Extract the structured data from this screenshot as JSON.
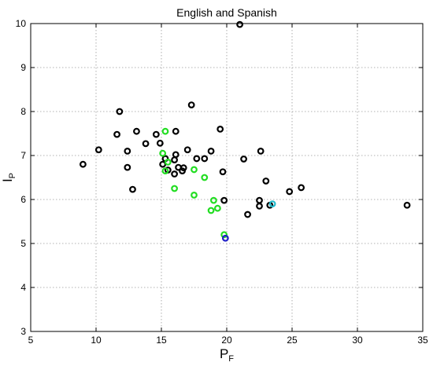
{
  "chart_data": {
    "type": "scatter",
    "title": "English and Spanish",
    "xlabel": {
      "main": "P",
      "sub": "F"
    },
    "ylabel": {
      "main": "I",
      "sub": "P"
    },
    "xlim": [
      5,
      35
    ],
    "ylim": [
      3,
      10
    ],
    "xticks": [
      5,
      10,
      15,
      20,
      25,
      30,
      35
    ],
    "yticks": [
      3,
      4,
      5,
      6,
      7,
      8,
      9,
      10
    ],
    "grid": true,
    "legend": "none",
    "series": [
      {
        "color": "#000000",
        "points": [
          [
            21.0,
            9.98
          ],
          [
            11.8,
            8.0
          ],
          [
            17.3,
            8.15
          ],
          [
            9.0,
            6.8
          ],
          [
            10.2,
            7.13
          ],
          [
            11.6,
            7.48
          ],
          [
            12.4,
            7.1
          ],
          [
            12.4,
            6.73
          ],
          [
            12.8,
            6.23
          ],
          [
            13.1,
            7.55
          ],
          [
            13.8,
            7.27
          ],
          [
            14.6,
            7.48
          ],
          [
            14.9,
            7.28
          ],
          [
            15.1,
            6.8
          ],
          [
            15.3,
            6.93
          ],
          [
            15.5,
            6.67
          ],
          [
            16.0,
            6.58
          ],
          [
            16.0,
            6.9
          ],
          [
            16.1,
            7.02
          ],
          [
            16.1,
            7.55
          ],
          [
            16.3,
            6.73
          ],
          [
            16.6,
            6.65
          ],
          [
            16.7,
            6.72
          ],
          [
            17.0,
            7.13
          ],
          [
            17.7,
            6.93
          ],
          [
            18.3,
            6.93
          ],
          [
            18.8,
            7.1
          ],
          [
            19.5,
            7.6
          ],
          [
            19.7,
            6.63
          ],
          [
            19.8,
            5.98
          ],
          [
            21.3,
            6.92
          ],
          [
            21.6,
            5.66
          ],
          [
            22.5,
            5.98
          ],
          [
            22.5,
            5.85
          ],
          [
            22.6,
            7.1
          ],
          [
            23.0,
            6.42
          ],
          [
            23.3,
            5.87
          ],
          [
            24.8,
            6.18
          ],
          [
            25.7,
            6.27
          ],
          [
            33.8,
            5.87
          ]
        ]
      },
      {
        "color": "#22dd22",
        "points": [
          [
            15.1,
            7.05
          ],
          [
            15.3,
            7.55
          ],
          [
            15.5,
            6.85
          ],
          [
            15.3,
            6.65
          ],
          [
            16.0,
            6.25
          ],
          [
            17.5,
            6.68
          ],
          [
            17.5,
            6.1
          ],
          [
            18.3,
            6.5
          ],
          [
            18.8,
            5.75
          ],
          [
            19.0,
            5.98
          ],
          [
            19.3,
            5.8
          ],
          [
            19.8,
            5.2
          ]
        ]
      },
      {
        "color": "#1f1fc8",
        "points": [
          [
            19.9,
            5.12
          ]
        ]
      },
      {
        "color": "#22bbcc",
        "points": [
          [
            23.5,
            5.9
          ]
        ]
      }
    ]
  }
}
